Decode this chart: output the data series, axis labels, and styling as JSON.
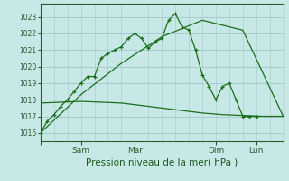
{
  "background_color": "#c8e8e8",
  "grid_color": "#a0c8c8",
  "line_color": "#1a6e1a",
  "xlabel": "Pression niveau de la mer( hPa )",
  "ylim": [
    1015.5,
    1023.8
  ],
  "yticks": [
    1016,
    1017,
    1018,
    1019,
    1020,
    1021,
    1022,
    1023
  ],
  "xlim": [
    0,
    108
  ],
  "xtick_positions": [
    0,
    18,
    42,
    78,
    96
  ],
  "xtick_labels": [
    "",
    "Sam",
    "Mar",
    "Dim",
    "Lun"
  ],
  "series1_x": [
    0,
    3,
    6,
    9,
    12,
    15,
    18,
    21,
    24,
    27,
    30,
    33,
    36,
    39,
    42,
    45,
    48,
    51,
    54,
    57,
    60,
    63,
    66,
    69,
    72,
    75,
    78,
    81,
    84,
    87,
    90,
    93,
    96
  ],
  "series1_y": [
    1016.0,
    1016.7,
    1017.1,
    1017.6,
    1018.0,
    1018.5,
    1019.0,
    1019.4,
    1019.4,
    1020.5,
    1020.8,
    1021.0,
    1021.2,
    1021.7,
    1022.0,
    1021.7,
    1021.1,
    1021.5,
    1021.7,
    1022.8,
    1023.2,
    1022.4,
    1022.2,
    1021.0,
    1019.5,
    1018.8,
    1018.0,
    1018.8,
    1019.0,
    1018.0,
    1017.0,
    1017.0,
    1017.0
  ],
  "series2_x": [
    0,
    18,
    36,
    54,
    72,
    90,
    108
  ],
  "series2_y": [
    1016.0,
    1018.3,
    1020.2,
    1021.8,
    1022.8,
    1022.2,
    1017.0
  ],
  "series3_x": [
    0,
    9,
    18,
    27,
    36,
    45,
    54,
    63,
    72,
    81,
    90,
    99,
    108
  ],
  "series3_y": [
    1017.8,
    1017.85,
    1017.9,
    1017.85,
    1017.8,
    1017.65,
    1017.5,
    1017.35,
    1017.2,
    1017.1,
    1017.05,
    1017.0,
    1017.0
  ]
}
